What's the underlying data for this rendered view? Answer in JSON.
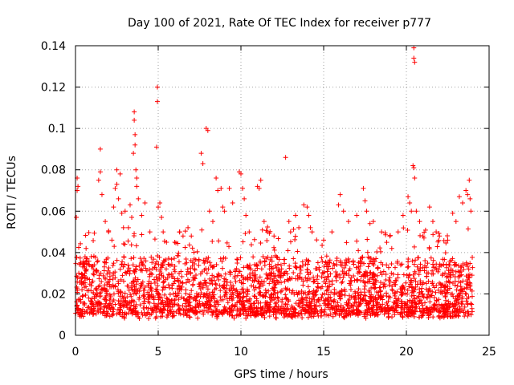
{
  "chart_data": {
    "type": "scatter",
    "title": "Day 100 of 2021, Rate Of TEC Index for receiver p777",
    "xlabel": "GPS time / hours",
    "ylabel": "ROTI / TECUs",
    "xlim": [
      0,
      25
    ],
    "ylim": [
      0,
      0.14
    ],
    "xticks": [
      0,
      5,
      10,
      15,
      20,
      25
    ],
    "xtick_labels": [
      "0",
      "5",
      "10",
      "15",
      "20",
      "25"
    ],
    "yticks": [
      0,
      0.02,
      0.04,
      0.06,
      0.08,
      0.1,
      0.12,
      0.14
    ],
    "ytick_labels": [
      "0",
      "0.02",
      "0.04",
      "0.06",
      "0.08",
      "0.1",
      "0.12",
      "0.14"
    ],
    "grid": true,
    "marker": "+",
    "color": "#ff0000",
    "series": [
      {
        "name": "ROTI",
        "points": [
          [
            0.05,
            0.057
          ],
          [
            0.1,
            0.07
          ],
          [
            0.1,
            0.076
          ],
          [
            0.15,
            0.072
          ],
          [
            0.2,
            0.03
          ],
          [
            0.3,
            0.035
          ],
          [
            0.4,
            0.028
          ],
          [
            1.4,
            0.075
          ],
          [
            1.5,
            0.09
          ],
          [
            1.5,
            0.079
          ],
          [
            1.6,
            0.068
          ],
          [
            1.8,
            0.055
          ],
          [
            2.0,
            0.05
          ],
          [
            2.2,
            0.046
          ],
          [
            2.3,
            0.062
          ],
          [
            2.4,
            0.071
          ],
          [
            2.5,
            0.08
          ],
          [
            2.5,
            0.073
          ],
          [
            2.6,
            0.066
          ],
          [
            2.7,
            0.078
          ],
          [
            2.8,
            0.059
          ],
          [
            2.9,
            0.052
          ],
          [
            3.0,
            0.06
          ],
          [
            3.2,
            0.052
          ],
          [
            3.3,
            0.063
          ],
          [
            3.4,
            0.057
          ],
          [
            3.55,
            0.108
          ],
          [
            3.55,
            0.104
          ],
          [
            3.6,
            0.097
          ],
          [
            3.6,
            0.092
          ],
          [
            3.5,
            0.088
          ],
          [
            3.65,
            0.08
          ],
          [
            3.7,
            0.076
          ],
          [
            3.7,
            0.072
          ],
          [
            3.8,
            0.066
          ],
          [
            4.0,
            0.058
          ],
          [
            4.2,
            0.064
          ],
          [
            4.5,
            0.05
          ],
          [
            4.9,
            0.091
          ],
          [
            4.95,
            0.12
          ],
          [
            4.95,
            0.113
          ],
          [
            5.0,
            0.062
          ],
          [
            5.1,
            0.064
          ],
          [
            5.2,
            0.057
          ],
          [
            5.3,
            0.05
          ],
          [
            5.5,
            0.045
          ],
          [
            6.0,
            0.045
          ],
          [
            6.3,
            0.05
          ],
          [
            6.5,
            0.048
          ],
          [
            6.8,
            0.052
          ],
          [
            7.0,
            0.048
          ],
          [
            7.6,
            0.088
          ],
          [
            7.7,
            0.083
          ],
          [
            7.9,
            0.1
          ],
          [
            8.0,
            0.099
          ],
          [
            8.1,
            0.06
          ],
          [
            8.3,
            0.055
          ],
          [
            8.5,
            0.076
          ],
          [
            8.6,
            0.07
          ],
          [
            8.8,
            0.071
          ],
          [
            8.9,
            0.062
          ],
          [
            9.0,
            0.06
          ],
          [
            9.3,
            0.071
          ],
          [
            9.5,
            0.064
          ],
          [
            9.9,
            0.079
          ],
          [
            10.0,
            0.078
          ],
          [
            10.1,
            0.071
          ],
          [
            10.2,
            0.066
          ],
          [
            10.3,
            0.058
          ],
          [
            10.5,
            0.05
          ],
          [
            11.0,
            0.072
          ],
          [
            11.1,
            0.071
          ],
          [
            11.2,
            0.075
          ],
          [
            11.4,
            0.055
          ],
          [
            11.6,
            0.05
          ],
          [
            12.0,
            0.048
          ],
          [
            12.7,
            0.086
          ],
          [
            12.9,
            0.055
          ],
          [
            13.0,
            0.05
          ],
          [
            13.3,
            0.058
          ],
          [
            13.5,
            0.052
          ],
          [
            13.8,
            0.063
          ],
          [
            14.0,
            0.062
          ],
          [
            14.1,
            0.058
          ],
          [
            14.2,
            0.052
          ],
          [
            14.3,
            0.05
          ],
          [
            15.0,
            0.046
          ],
          [
            15.5,
            0.05
          ],
          [
            15.9,
            0.063
          ],
          [
            16.0,
            0.068
          ],
          [
            16.2,
            0.06
          ],
          [
            16.5,
            0.055
          ],
          [
            17.0,
            0.058
          ],
          [
            17.4,
            0.071
          ],
          [
            17.5,
            0.065
          ],
          [
            17.6,
            0.06
          ],
          [
            17.8,
            0.054
          ],
          [
            18.0,
            0.055
          ],
          [
            18.5,
            0.05
          ],
          [
            19.0,
            0.048
          ],
          [
            19.5,
            0.05
          ],
          [
            19.8,
            0.058
          ],
          [
            20.1,
            0.067
          ],
          [
            20.2,
            0.064
          ],
          [
            20.3,
            0.06
          ],
          [
            20.4,
            0.082
          ],
          [
            20.45,
            0.081
          ],
          [
            20.5,
            0.076
          ],
          [
            20.45,
            0.139
          ],
          [
            20.45,
            0.134
          ],
          [
            20.5,
            0.132
          ],
          [
            20.6,
            0.06
          ],
          [
            20.8,
            0.055
          ],
          [
            21.0,
            0.048
          ],
          [
            21.4,
            0.062
          ],
          [
            21.6,
            0.055
          ],
          [
            21.8,
            0.05
          ],
          [
            22.0,
            0.048
          ],
          [
            22.5,
            0.046
          ],
          [
            22.8,
            0.059
          ],
          [
            23.0,
            0.055
          ],
          [
            23.2,
            0.067
          ],
          [
            23.4,
            0.064
          ],
          [
            23.6,
            0.07
          ],
          [
            23.7,
            0.068
          ],
          [
            23.8,
            0.075
          ],
          [
            23.85,
            0.066
          ],
          [
            23.9,
            0.06
          ]
        ],
        "bulk": {
          "description": "dense band of points across the whole day",
          "x_range": [
            0,
            24
          ],
          "baseline": 0.008,
          "typical_max": 0.035,
          "count": 2600
        }
      }
    ]
  }
}
